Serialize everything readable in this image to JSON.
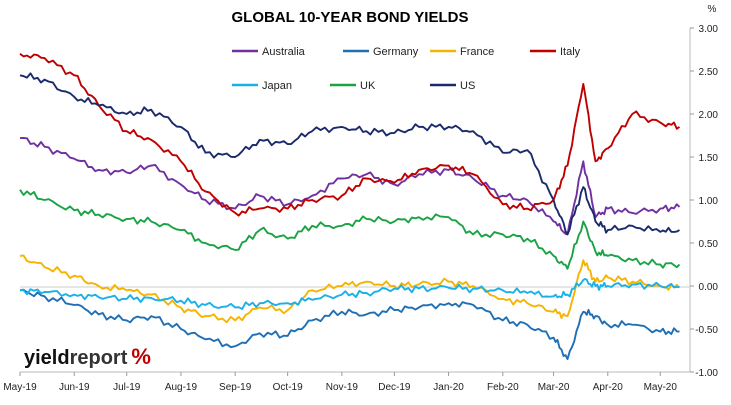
{
  "chart_data": {
    "type": "line",
    "title": "GLOBAL 10-YEAR BOND YIELDS",
    "ylabel": "%",
    "ylim": [
      -1.0,
      3.0
    ],
    "y_axis_side": "right",
    "y_tick_labels": [
      "3.00",
      "2.50",
      "2.00",
      "1.50",
      "1.00",
      "0.50",
      "0.00",
      "-0.50",
      "-1.00"
    ],
    "y_tick_values": [
      3.0,
      2.5,
      2.0,
      1.5,
      1.0,
      0.5,
      0.0,
      -0.5,
      -1.0
    ],
    "x_tick_labels": [
      "May-19",
      "Jun-19",
      "Jul-19",
      "Aug-19",
      "Sep-19",
      "Oct-19",
      "Nov-19",
      "Dec-19",
      "Jan-20",
      "Feb-20",
      "Mar-20",
      "Apr-20",
      "May-20"
    ],
    "x_tick_dates": [
      "2019-05-01",
      "2019-06-01",
      "2019-07-01",
      "2019-08-01",
      "2019-09-01",
      "2019-10-01",
      "2019-11-01",
      "2019-12-01",
      "2020-01-01",
      "2020-02-01",
      "2020-03-01",
      "2020-04-01",
      "2020-05-01"
    ],
    "x": [
      "2019-05-01",
      "2019-05-15",
      "2019-06-01",
      "2019-06-15",
      "2019-07-01",
      "2019-07-15",
      "2019-08-01",
      "2019-08-15",
      "2019-09-01",
      "2019-09-15",
      "2019-10-01",
      "2019-10-15",
      "2019-11-01",
      "2019-11-15",
      "2019-12-01",
      "2019-12-15",
      "2020-01-01",
      "2020-01-15",
      "2020-02-01",
      "2020-02-15",
      "2020-03-01",
      "2020-03-09",
      "2020-03-18",
      "2020-03-25",
      "2020-04-01",
      "2020-04-15",
      "2020-05-01",
      "2020-05-12"
    ],
    "grid": false,
    "legend_position": "top",
    "series": [
      {
        "name": "Australia",
        "color": "#7030a0",
        "values": [
          1.72,
          1.62,
          1.48,
          1.35,
          1.32,
          1.4,
          1.18,
          1.0,
          0.9,
          1.05,
          0.95,
          1.05,
          1.25,
          1.3,
          1.18,
          1.3,
          1.35,
          1.25,
          1.05,
          1.0,
          0.75,
          0.6,
          1.45,
          0.8,
          0.9,
          0.85,
          0.9,
          0.92
        ]
      },
      {
        "name": "Germany",
        "color": "#1f6fb5",
        "values": [
          -0.05,
          -0.12,
          -0.22,
          -0.33,
          -0.4,
          -0.35,
          -0.5,
          -0.62,
          -0.7,
          -0.55,
          -0.58,
          -0.4,
          -0.3,
          -0.33,
          -0.28,
          -0.25,
          -0.2,
          -0.22,
          -0.4,
          -0.45,
          -0.6,
          -0.85,
          -0.3,
          -0.35,
          -0.45,
          -0.45,
          -0.53,
          -0.53
        ]
      },
      {
        "name": "France",
        "color": "#f5b400",
        "values": [
          0.35,
          0.22,
          0.12,
          0.0,
          -0.05,
          -0.1,
          -0.25,
          -0.35,
          -0.4,
          -0.25,
          -0.28,
          -0.05,
          0.0,
          0.05,
          0.0,
          0.02,
          0.05,
          0.0,
          -0.15,
          -0.2,
          -0.3,
          -0.35,
          0.3,
          0.05,
          0.1,
          0.05,
          0.0,
          -0.02
        ]
      },
      {
        "name": "Italy",
        "color": "#c00000",
        "values": [
          2.7,
          2.65,
          2.45,
          2.1,
          1.8,
          1.7,
          1.45,
          1.1,
          0.85,
          0.9,
          0.9,
          1.0,
          1.05,
          1.25,
          1.2,
          1.35,
          1.4,
          1.3,
          0.95,
          0.9,
          1.0,
          1.4,
          2.35,
          1.45,
          1.6,
          2.0,
          1.9,
          1.85
        ]
      },
      {
        "name": "Japan",
        "color": "#1ab0e8",
        "values": [
          -0.05,
          -0.07,
          -0.1,
          -0.13,
          -0.15,
          -0.14,
          -0.17,
          -0.22,
          -0.25,
          -0.2,
          -0.2,
          -0.16,
          -0.1,
          -0.08,
          -0.03,
          -0.03,
          -0.02,
          -0.03,
          -0.05,
          -0.08,
          -0.12,
          -0.1,
          0.07,
          0.0,
          0.0,
          0.02,
          0.0,
          -0.01
        ]
      },
      {
        "name": "UK",
        "color": "#1aa345",
        "values": [
          1.12,
          1.0,
          0.88,
          0.83,
          0.78,
          0.75,
          0.65,
          0.5,
          0.42,
          0.65,
          0.55,
          0.7,
          0.7,
          0.78,
          0.75,
          0.8,
          0.8,
          0.6,
          0.6,
          0.55,
          0.35,
          0.2,
          0.75,
          0.4,
          0.35,
          0.3,
          0.25,
          0.25
        ]
      },
      {
        "name": "US",
        "color": "#1b2a6b",
        "values": [
          2.45,
          2.4,
          2.2,
          2.1,
          2.0,
          2.05,
          1.85,
          1.55,
          1.5,
          1.7,
          1.65,
          1.8,
          1.85,
          1.8,
          1.78,
          1.85,
          1.85,
          1.8,
          1.55,
          1.58,
          1.0,
          0.6,
          1.15,
          0.75,
          0.65,
          0.7,
          0.63,
          0.65
        ]
      }
    ]
  },
  "logo": {
    "part1": "yield",
    "part2": "report",
    "part3": "%"
  }
}
